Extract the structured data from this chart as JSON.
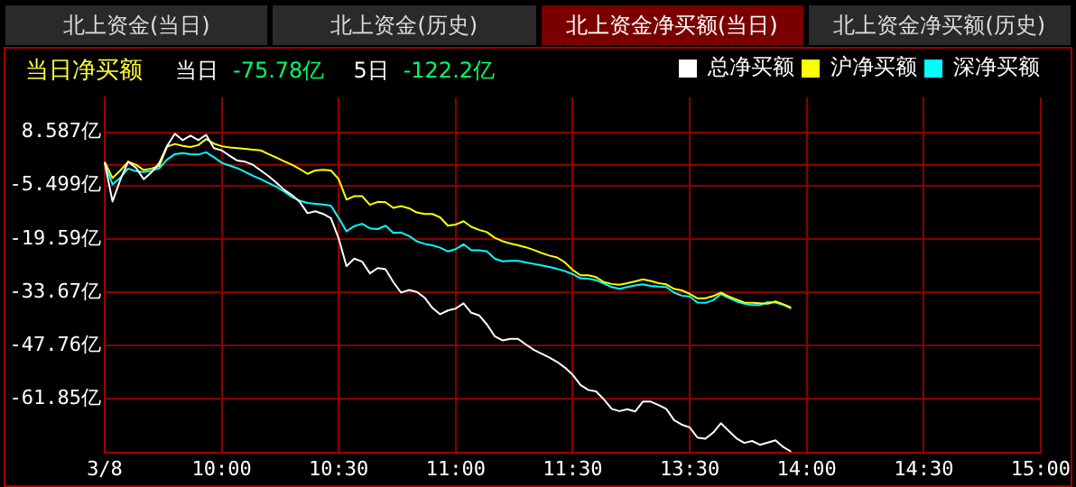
{
  "chart_data": {
    "type": "line",
    "title": "当日净买额",
    "annotations": [
      "北上资金(当日)",
      "北上资金(历史)",
      "北上资金净买额(当日)",
      "北上资金净买额(历史)",
      "当日",
      "-75.78亿",
      "5日",
      "-122.2亿"
    ],
    "legend": "top right",
    "grid": true,
    "marker": "none",
    "line_style": "solid",
    "categories": [
      "3/8",
      null,
      null,
      null,
      null,
      null,
      null,
      null,
      null,
      null,
      null,
      null,
      null,
      null,
      null,
      "10:00",
      null,
      null,
      null,
      null,
      null,
      null,
      null,
      null,
      null,
      null,
      null,
      null,
      null,
      null,
      "10:30",
      null,
      null,
      null,
      null,
      null,
      null,
      null,
      null,
      null,
      null,
      null,
      null,
      null,
      null,
      "11:00",
      null,
      null,
      null,
      null,
      null,
      null,
      null,
      null,
      null,
      null,
      null,
      null,
      null,
      null,
      "11:30",
      null,
      null,
      null,
      null,
      null,
      null,
      null,
      null,
      null,
      null,
      null,
      null,
      null,
      null,
      "13:30",
      null,
      null,
      null,
      null,
      null,
      null,
      null,
      null,
      null,
      null,
      null,
      null,
      null,
      null,
      "14:00",
      null,
      null,
      null,
      null,
      null,
      null,
      null,
      null,
      null,
      null,
      null,
      null,
      null,
      null,
      "14:30",
      null,
      null,
      null,
      null,
      null,
      null,
      null,
      null,
      null,
      null,
      null,
      null,
      null,
      null,
      "15:00"
    ],
    "ylim": [
      -76.0,
      17.8
    ],
    "yticks": [
      {
        "value": -61.85,
        "label": "-61.85亿"
      },
      {
        "value": -47.76,
        "label": "-47.76亿"
      },
      {
        "value": -33.67,
        "label": "-33.67亿"
      },
      {
        "value": -19.59,
        "label": "-19.59亿"
      },
      {
        "value": -5.499,
        "label": "-5.499亿"
      },
      {
        "value": 8.587,
        "label": "8.587亿"
      }
    ],
    "ref_lines": [
      {
        "axis": "y",
        "value": 0,
        "color": "#a00000"
      }
    ],
    "series": [
      {
        "name": "总净买额",
        "color": "#ffffff",
        "values": [
          0.5,
          -9.7,
          -4.0,
          0.8,
          -0.8,
          -3.8,
          -2.0,
          0.5,
          5.0,
          8.2,
          6.5,
          7.7,
          6.5,
          7.9,
          4.4,
          3.8,
          2.4,
          1.1,
          0.8,
          0,
          -1.5,
          -3.0,
          -4.7,
          -6.6,
          -8.0,
          -9.8,
          -12.8,
          -12.3,
          -13.0,
          -14.1,
          -19.5,
          -26.8,
          -24.8,
          -25.6,
          -28.7,
          -27.3,
          -27.6,
          -31.0,
          -33.8,
          -33.1,
          -33.6,
          -35.1,
          -37.8,
          -39.5,
          -38.5,
          -38.0,
          -36.6,
          -39.1,
          -39.8,
          -42.2,
          -45.3,
          -46.4,
          -46.0,
          -46.0,
          -47.5,
          -48.9,
          -49.9,
          -50.9,
          -52.1,
          -53.6,
          -55.5,
          -58.2,
          -59.5,
          -59.9,
          -62.0,
          -64.5,
          -65.1,
          -64.6,
          -65.2,
          -62.6,
          -62.6,
          -63.5,
          -64.5,
          -67.5,
          -68.7,
          -69.4,
          -72.1,
          -72.4,
          -70.8,
          -68.3,
          -70.3,
          -72.3,
          -73.5,
          -73.0,
          -74.0,
          -73.4,
          -72.8,
          -74.6,
          -75.8,
          null,
          null,
          null,
          null,
          null,
          null,
          null,
          null,
          null,
          null,
          null,
          null,
          null,
          null,
          null,
          null,
          null,
          null,
          null,
          null,
          null,
          null,
          null,
          null,
          null,
          null,
          null,
          null,
          null,
          null,
          null,
          null
        ]
      },
      {
        "name": "沪净买额",
        "color": "#ffff00",
        "values": [
          0.8,
          -3.5,
          -1.5,
          0.8,
          0,
          -1.4,
          -1.0,
          -0.3,
          4.8,
          5.5,
          5.0,
          4.7,
          5.2,
          6.8,
          5.6,
          4.9,
          4.6,
          4.4,
          4.2,
          4.0,
          3.8,
          2.8,
          1.9,
          0.9,
          0,
          -1.1,
          -2.4,
          -1.5,
          -1.3,
          -1.5,
          -3.8,
          -9.2,
          -8.3,
          -8.3,
          -10.6,
          -9.8,
          -9.9,
          -11.4,
          -10.9,
          -11.5,
          -12.6,
          -13.0,
          -13.0,
          -13.9,
          -16.1,
          -15.8,
          -14.9,
          -16.4,
          -17.2,
          -17.8,
          -19.3,
          -20.2,
          -20.8,
          -21.3,
          -21.8,
          -22.5,
          -23.3,
          -24.0,
          -24.5,
          -25.8,
          -27.8,
          -29.2,
          -29.2,
          -29.7,
          -31.0,
          -31.5,
          -31.7,
          -31.3,
          -30.8,
          -30.3,
          -30.7,
          -31.3,
          -31.6,
          -32.8,
          -33.2,
          -34.1,
          -35.3,
          -35.3,
          -34.7,
          -33.8,
          -34.8,
          -35.6,
          -36.4,
          -36.5,
          -36.6,
          -36.7,
          -36.1,
          -36.9,
          -37.7,
          null,
          null,
          null,
          null,
          null,
          null,
          null,
          null,
          null,
          null,
          null,
          null,
          null,
          null,
          null,
          null,
          null,
          null,
          null,
          null,
          null,
          null,
          null,
          null,
          null,
          null,
          null,
          null,
          null,
          null,
          null,
          null
        ]
      },
      {
        "name": "深净买额",
        "color": "#00ffff",
        "values": [
          0.5,
          -5.2,
          -3.4,
          -1.0,
          -1.7,
          -1.9,
          -1.6,
          -0.9,
          1.4,
          2.8,
          3.1,
          2.8,
          2.7,
          3.3,
          2.0,
          0.5,
          -0.2,
          -0.9,
          -1.9,
          -2.9,
          -3.8,
          -4.8,
          -5.8,
          -7.1,
          -8.5,
          -9.5,
          -10.1,
          -10.3,
          -10.5,
          -10.8,
          -14.1,
          -17.6,
          -16.2,
          -15.6,
          -16.8,
          -17.0,
          -16.1,
          -18.0,
          -17.9,
          -18.8,
          -20.2,
          -20.9,
          -21.3,
          -21.9,
          -22.9,
          -22.3,
          -21.0,
          -22.6,
          -22.6,
          -22.9,
          -24.8,
          -25.5,
          -25.4,
          -25.4,
          -25.8,
          -26.2,
          -26.6,
          -27.0,
          -27.5,
          -28.1,
          -28.9,
          -30.0,
          -30.1,
          -30.5,
          -31.4,
          -32.3,
          -32.8,
          -32.3,
          -31.9,
          -31.6,
          -32.0,
          -32.2,
          -32.3,
          -33.8,
          -34.6,
          -34.8,
          -36.4,
          -36.5,
          -35.8,
          -34.2,
          -35.2,
          -36.1,
          -36.7,
          -37.1,
          -37.1,
          -36.3,
          -36.4,
          -37.0,
          -38.0,
          null,
          null,
          null,
          null,
          null,
          null,
          null,
          null,
          null,
          null,
          null,
          null,
          null,
          null,
          null,
          null,
          null,
          null,
          null,
          null,
          null,
          null,
          null,
          null,
          null,
          null,
          null,
          null,
          null,
          null,
          null,
          null
        ]
      }
    ]
  }
}
